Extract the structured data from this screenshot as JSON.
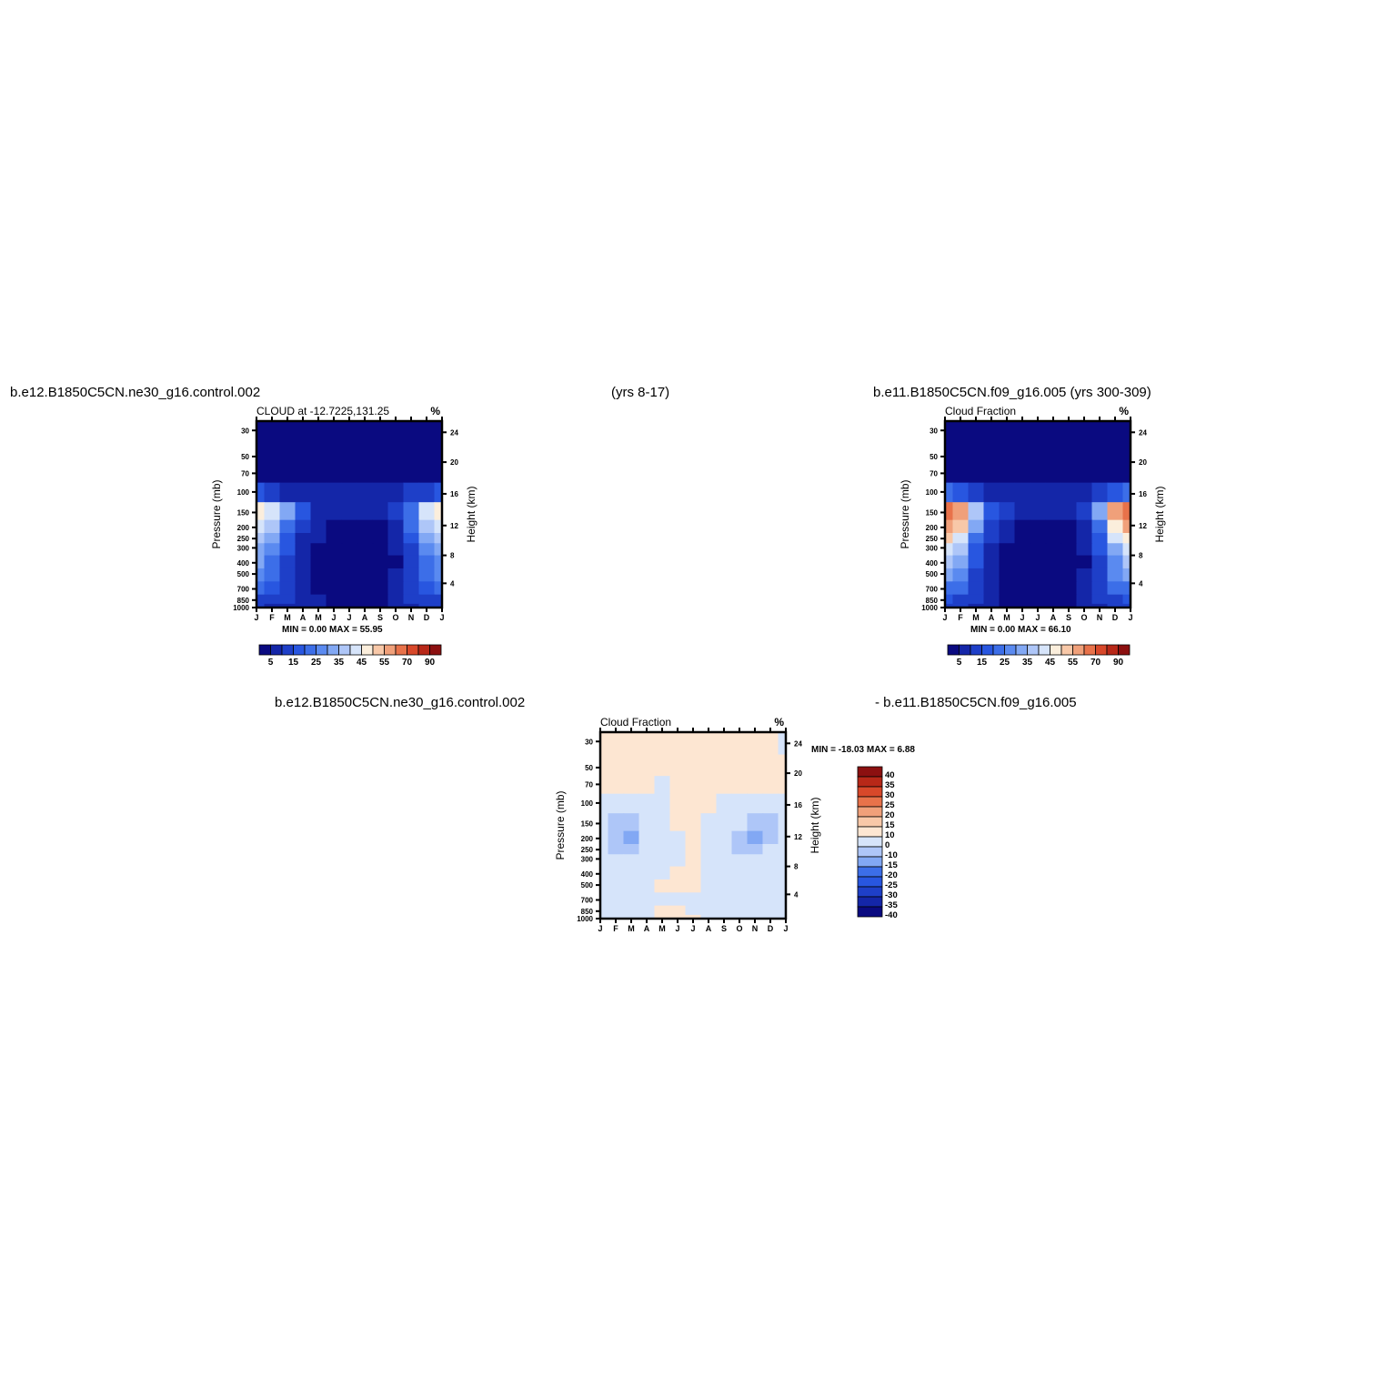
{
  "headers": {
    "case1": "b.e12.B1850C5CN.ne30_g16.control.002",
    "years1": "(yrs 8-17)",
    "case2": "b.e11.B1850C5CN.f09_g16.005 (yrs 300-309)",
    "diff_case1": "b.e12.B1850C5CN.ne30_g16.control.002",
    "diff_case2": "- b.e11.B1850C5CN.f09_g16.005"
  },
  "palettes": {
    "abs": [
      "#0a0a80",
      "#1426a8",
      "#1e3fc8",
      "#2856e0",
      "#3c6ee8",
      "#5a8af0",
      "#82a8f4",
      "#aec6f8",
      "#d6e4fa",
      "#fbeedc",
      "#f8c8a8",
      "#f0a07a",
      "#e8724a",
      "#d8482a",
      "#b82818",
      "#8c1010"
    ],
    "diff": [
      "#0a0a80",
      "#1426a8",
      "#1e3fc8",
      "#2856e0",
      "#3c6ee8",
      "#82a8f4",
      "#aec6f8",
      "#d6e4fa",
      "#fde6d2",
      "#f8c8a8",
      "#f0a07a",
      "#e8724a",
      "#d8482a",
      "#b82818",
      "#8c1010"
    ]
  },
  "chart_data": [
    {
      "id": "case1",
      "type": "heatmap",
      "title": "CLOUD at -12.7225,131.25",
      "units": "%",
      "stats": "MIN =    0.00 MAX =   55.95",
      "ylabel": "Pressure (mb)",
      "ylabel_right": "Height (km)",
      "x_ticks": [
        "J",
        "F",
        "M",
        "A",
        "M",
        "J",
        "J",
        "A",
        "S",
        "O",
        "N",
        "D",
        "J"
      ],
      "y_ticks": [
        "30",
        "50",
        "70",
        "100",
        "150",
        "200",
        "250",
        "300",
        "400",
        "500",
        "700",
        "850",
        "1000"
      ],
      "y_right_ticks": [
        "24",
        "20",
        "16",
        "12",
        "8",
        "4"
      ],
      "legend_labels": [
        "5",
        "15",
        "25",
        "35",
        "45",
        "55",
        "70",
        "90"
      ],
      "max": 55.95,
      "grid": "monthly x 13 pressure levels, cloud fraction in % (estimated)",
      "values": [
        [
          2,
          2,
          2,
          2,
          2,
          2,
          2,
          2,
          2,
          2,
          2,
          2,
          2
        ],
        [
          2,
          2,
          2,
          2,
          2,
          2,
          2,
          2,
          2,
          2,
          2,
          2,
          2
        ],
        [
          4,
          3,
          2,
          2,
          2,
          2,
          2,
          2,
          2,
          2,
          2,
          3,
          4
        ],
        [
          16,
          13,
          9,
          6,
          5,
          6,
          6,
          5,
          6,
          7,
          10,
          14,
          16
        ],
        [
          48,
          44,
          30,
          15,
          9,
          6,
          5,
          5,
          6,
          10,
          24,
          40,
          47
        ],
        [
          42,
          38,
          24,
          12,
          7,
          4,
          3,
          3,
          4,
          8,
          20,
          36,
          41
        ],
        [
          36,
          32,
          18,
          9,
          5,
          3,
          2,
          2,
          3,
          6,
          16,
          30,
          35
        ],
        [
          32,
          28,
          15,
          7,
          4,
          2,
          2,
          2,
          2,
          5,
          14,
          26,
          31
        ],
        [
          30,
          24,
          13,
          6,
          3,
          1,
          1,
          1,
          2,
          4,
          12,
          22,
          29
        ],
        [
          28,
          22,
          14,
          6,
          3,
          1,
          1,
          1,
          2,
          5,
          13,
          22,
          27
        ],
        [
          20,
          18,
          14,
          8,
          4,
          2,
          1,
          1,
          2,
          6,
          14,
          18,
          20
        ],
        [
          14,
          12,
          10,
          8,
          5,
          3,
          2,
          2,
          3,
          6,
          10,
          13,
          14
        ],
        [
          10,
          9,
          8,
          7,
          5,
          4,
          3,
          3,
          4,
          6,
          9,
          10,
          10
        ]
      ]
    },
    {
      "id": "case2",
      "type": "heatmap",
      "title": "Cloud Fraction",
      "units": "%",
      "stats": "MIN =    0.00 MAX =   66.10",
      "ylabel": "Pressure (mb)",
      "ylabel_right": "Height (km)",
      "x_ticks": [
        "J",
        "F",
        "M",
        "A",
        "M",
        "J",
        "J",
        "A",
        "S",
        "O",
        "N",
        "D",
        "J"
      ],
      "y_ticks": [
        "30",
        "50",
        "70",
        "100",
        "150",
        "200",
        "250",
        "300",
        "400",
        "500",
        "700",
        "850",
        "1000"
      ],
      "y_right_ticks": [
        "24",
        "20",
        "16",
        "12",
        "8",
        "4"
      ],
      "legend_labels": [
        "5",
        "15",
        "25",
        "35",
        "45",
        "55",
        "70",
        "90"
      ],
      "max": 66.1,
      "grid": "monthly x 13 pressure levels, cloud fraction in % (estimated)",
      "values": [
        [
          2,
          2,
          2,
          2,
          2,
          2,
          2,
          2,
          2,
          2,
          2,
          2,
          2
        ],
        [
          2,
          2,
          2,
          2,
          2,
          2,
          2,
          2,
          2,
          2,
          2,
          2,
          2
        ],
        [
          4,
          3,
          2,
          2,
          2,
          2,
          2,
          2,
          2,
          2,
          2,
          3,
          4
        ],
        [
          20,
          16,
          10,
          7,
          6,
          6,
          5,
          5,
          6,
          8,
          12,
          18,
          20
        ],
        [
          64,
          58,
          38,
          18,
          10,
          6,
          5,
          5,
          6,
          12,
          30,
          55,
          62
        ],
        [
          58,
          52,
          30,
          14,
          7,
          4,
          3,
          3,
          4,
          9,
          24,
          48,
          56
        ],
        [
          50,
          44,
          22,
          10,
          5,
          3,
          2,
          2,
          3,
          7,
          18,
          40,
          48
        ],
        [
          44,
          38,
          18,
          8,
          4,
          2,
          1,
          1,
          2,
          5,
          15,
          34,
          42
        ],
        [
          38,
          30,
          15,
          6,
          3,
          1,
          1,
          1,
          2,
          4,
          13,
          28,
          36
        ],
        [
          34,
          26,
          14,
          6,
          3,
          1,
          1,
          1,
          2,
          5,
          14,
          26,
          32
        ],
        [
          24,
          20,
          14,
          8,
          4,
          2,
          1,
          1,
          2,
          6,
          14,
          20,
          23
        ],
        [
          16,
          14,
          10,
          7,
          4,
          3,
          2,
          2,
          3,
          5,
          10,
          14,
          16
        ],
        [
          11,
          10,
          8,
          6,
          4,
          3,
          2,
          2,
          3,
          5,
          8,
          10,
          11
        ]
      ]
    },
    {
      "id": "diff",
      "type": "heatmap",
      "title": "Cloud Fraction",
      "units": "%",
      "stats": "MIN = -18.03 MAX =    6.88",
      "ylabel": "Pressure (mb)",
      "ylabel_right": "Height (km)",
      "x_ticks": [
        "J",
        "F",
        "M",
        "A",
        "M",
        "J",
        "J",
        "A",
        "S",
        "O",
        "N",
        "D",
        "J"
      ],
      "y_ticks": [
        "30",
        "50",
        "70",
        "100",
        "150",
        "200",
        "250",
        "300",
        "400",
        "500",
        "700",
        "850",
        "1000"
      ],
      "y_right_ticks": [
        "24",
        "20",
        "16",
        "12",
        "8",
        "4"
      ],
      "legend_labels": [
        "40",
        "35",
        "30",
        "25",
        "20",
        "15",
        "10",
        "0",
        "-10",
        "-15",
        "-20",
        "-25",
        "-30",
        "-35",
        "-40"
      ],
      "min": -18.03,
      "max": 6.88,
      "values": [
        [
          1,
          1,
          1,
          1,
          1,
          1,
          1,
          1,
          1,
          1,
          1,
          1,
          -1
        ],
        [
          1,
          1,
          1,
          1,
          1,
          1,
          1,
          1,
          1,
          1,
          1,
          1,
          1
        ],
        [
          1,
          1,
          1,
          1,
          -2,
          1,
          1,
          1,
          1,
          1,
          1,
          1,
          1
        ],
        [
          -4,
          -3,
          -4,
          -2,
          -1,
          1,
          1,
          1,
          -1,
          -3,
          -4,
          -4,
          -3
        ],
        [
          -8,
          -12,
          -15,
          -6,
          -3,
          1,
          1,
          -3,
          -4,
          -10,
          -12,
          -12,
          -10
        ],
        [
          -8,
          -14,
          -18,
          -8,
          -4,
          -2,
          1,
          -4,
          -8,
          -14,
          -17,
          -12,
          -10
        ],
        [
          -6,
          -12,
          -14,
          -6,
          -2,
          -2,
          1,
          -6,
          -8,
          -12,
          -14,
          -10,
          -8
        ],
        [
          -6,
          -8,
          -8,
          -4,
          -2,
          -2,
          1,
          -4,
          -6,
          -8,
          -8,
          -8,
          -6
        ],
        [
          -4,
          -4,
          -4,
          -2,
          -1,
          1,
          1,
          -2,
          -4,
          -4,
          -4,
          -4,
          -4
        ],
        [
          -2,
          -2,
          -2,
          -1,
          1,
          1,
          1,
          -1,
          -2,
          -2,
          -2,
          -2,
          -2
        ],
        [
          -2,
          -2,
          -2,
          -1,
          -1,
          -1,
          -1,
          -2,
          -2,
          -2,
          -2,
          -2,
          -2
        ],
        [
          -2,
          -2,
          -2,
          -2,
          1,
          1,
          -1,
          -1,
          -2,
          -2,
          -2,
          -2,
          -2
        ],
        [
          -1,
          -1,
          -1,
          -1,
          1,
          1,
          1,
          -1,
          -1,
          -1,
          -1,
          -1,
          -1
        ]
      ]
    }
  ]
}
